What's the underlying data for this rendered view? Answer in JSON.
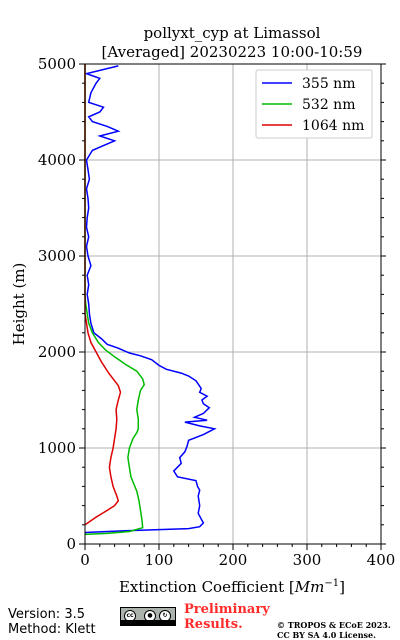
{
  "chart_data": {
    "type": "line",
    "title": "pollyxt_cyp at Limassol",
    "subtitle": "[Averaged] 20230223 10:00-10:59",
    "xlabel": "Extinction Coefficient [",
    "xlabel_unit": "Mm",
    "xlabel_exp": "−1",
    "xlabel_close": "]",
    "ylabel": "Height (m)",
    "xlim": [
      0,
      400
    ],
    "ylim": [
      0,
      5000
    ],
    "x_ticks": [
      "0",
      "100",
      "200",
      "300",
      "400"
    ],
    "y_ticks": [
      "0",
      "1000",
      "2000",
      "3000",
      "4000",
      "5000"
    ],
    "grid": true,
    "legend_position": "top-right",
    "series": [
      {
        "name": "355 nm",
        "color": "#0000ff",
        "points": [
          [
            0,
            120
          ],
          [
            60,
            140
          ],
          [
            100,
            150
          ],
          [
            140,
            160
          ],
          [
            155,
            180
          ],
          [
            160,
            220
          ],
          [
            157,
            260
          ],
          [
            153,
            320
          ],
          [
            155,
            400
          ],
          [
            153,
            500
          ],
          [
            155,
            560
          ],
          [
            152,
            600
          ],
          [
            150,
            660
          ],
          [
            125,
            700
          ],
          [
            120,
            760
          ],
          [
            125,
            800
          ],
          [
            130,
            840
          ],
          [
            128,
            900
          ],
          [
            135,
            960
          ],
          [
            138,
            1020
          ],
          [
            140,
            1080
          ],
          [
            160,
            1140
          ],
          [
            175,
            1200
          ],
          [
            155,
            1230
          ],
          [
            135,
            1270
          ],
          [
            165,
            1290
          ],
          [
            148,
            1320
          ],
          [
            160,
            1360
          ],
          [
            168,
            1420
          ],
          [
            160,
            1460
          ],
          [
            158,
            1500
          ],
          [
            165,
            1540
          ],
          [
            155,
            1580
          ],
          [
            157,
            1620
          ],
          [
            150,
            1700
          ],
          [
            140,
            1750
          ],
          [
            130,
            1780
          ],
          [
            110,
            1820
          ],
          [
            100,
            1860
          ],
          [
            90,
            1920
          ],
          [
            75,
            1960
          ],
          [
            60,
            1990
          ],
          [
            45,
            2040
          ],
          [
            30,
            2080
          ],
          [
            22,
            2140
          ],
          [
            12,
            2200
          ],
          [
            8,
            2300
          ],
          [
            6,
            2400
          ],
          [
            5,
            2500
          ],
          [
            3,
            2600
          ],
          [
            5,
            2700
          ],
          [
            3,
            2800
          ],
          [
            8,
            2900
          ],
          [
            4,
            3000
          ],
          [
            2,
            3100
          ],
          [
            5,
            3200
          ],
          [
            2,
            3300
          ],
          [
            3,
            3400
          ],
          [
            5,
            3500
          ],
          [
            4,
            3600
          ],
          [
            2,
            3700
          ],
          [
            6,
            3800
          ],
          [
            4,
            3900
          ],
          [
            2,
            4000
          ],
          [
            10,
            4100
          ],
          [
            25,
            4150
          ],
          [
            40,
            4200
          ],
          [
            20,
            4250
          ],
          [
            45,
            4300
          ],
          [
            30,
            4350
          ],
          [
            10,
            4400
          ],
          [
            5,
            4450
          ],
          [
            20,
            4500
          ],
          [
            25,
            4550
          ],
          [
            5,
            4600
          ],
          [
            8,
            4700
          ],
          [
            15,
            4800
          ],
          [
            20,
            4850
          ],
          [
            2,
            4900
          ],
          [
            45,
            4980
          ]
        ]
      },
      {
        "name": "532 nm",
        "color": "#00bb00",
        "points": [
          [
            0,
            100
          ],
          [
            30,
            110
          ],
          [
            60,
            130
          ],
          [
            78,
            170
          ],
          [
            77,
            250
          ],
          [
            75,
            350
          ],
          [
            73,
            450
          ],
          [
            70,
            550
          ],
          [
            62,
            700
          ],
          [
            60,
            800
          ],
          [
            58,
            900
          ],
          [
            60,
            1000
          ],
          [
            65,
            1100
          ],
          [
            70,
            1160
          ],
          [
            72,
            1200
          ],
          [
            72,
            1300
          ],
          [
            70,
            1400
          ],
          [
            72,
            1500
          ],
          [
            75,
            1600
          ],
          [
            80,
            1660
          ],
          [
            78,
            1720
          ],
          [
            70,
            1800
          ],
          [
            55,
            1870
          ],
          [
            40,
            1950
          ],
          [
            28,
            2020
          ],
          [
            18,
            2100
          ],
          [
            10,
            2200
          ],
          [
            5,
            2300
          ],
          [
            3,
            2400
          ],
          [
            1,
            2500
          ],
          [
            0,
            2600
          ],
          [
            0,
            2800
          ],
          [
            0,
            3000
          ],
          [
            0,
            3500
          ],
          [
            0,
            4000
          ],
          [
            0,
            4500
          ],
          [
            0,
            5000
          ]
        ]
      },
      {
        "name": "1064 nm",
        "color": "#dd0000",
        "points": [
          [
            0,
            200
          ],
          [
            15,
            280
          ],
          [
            30,
            350
          ],
          [
            40,
            400
          ],
          [
            45,
            450
          ],
          [
            43,
            500
          ],
          [
            38,
            600
          ],
          [
            35,
            700
          ],
          [
            33,
            800
          ],
          [
            35,
            900
          ],
          [
            38,
            1000
          ],
          [
            40,
            1100
          ],
          [
            42,
            1200
          ],
          [
            43,
            1300
          ],
          [
            42,
            1400
          ],
          [
            45,
            1500
          ],
          [
            48,
            1580
          ],
          [
            45,
            1650
          ],
          [
            40,
            1700
          ],
          [
            32,
            1780
          ],
          [
            22,
            1900
          ],
          [
            15,
            2000
          ],
          [
            8,
            2100
          ],
          [
            4,
            2200
          ],
          [
            2,
            2300
          ],
          [
            0,
            2400
          ],
          [
            0,
            2600
          ],
          [
            0,
            3000
          ],
          [
            0,
            3500
          ],
          [
            0,
            4000
          ],
          [
            0,
            4500
          ],
          [
            0,
            5000
          ]
        ]
      }
    ]
  },
  "footer": {
    "version": "Version: 3.5",
    "method": "Method: Klett",
    "preliminary": "Preliminary Results.",
    "copyright_line1": "© TROPOS & ECoE 2023.",
    "copyright_line2": "CC BY SA 4.0 License.",
    "cc_letters": "cc"
  }
}
